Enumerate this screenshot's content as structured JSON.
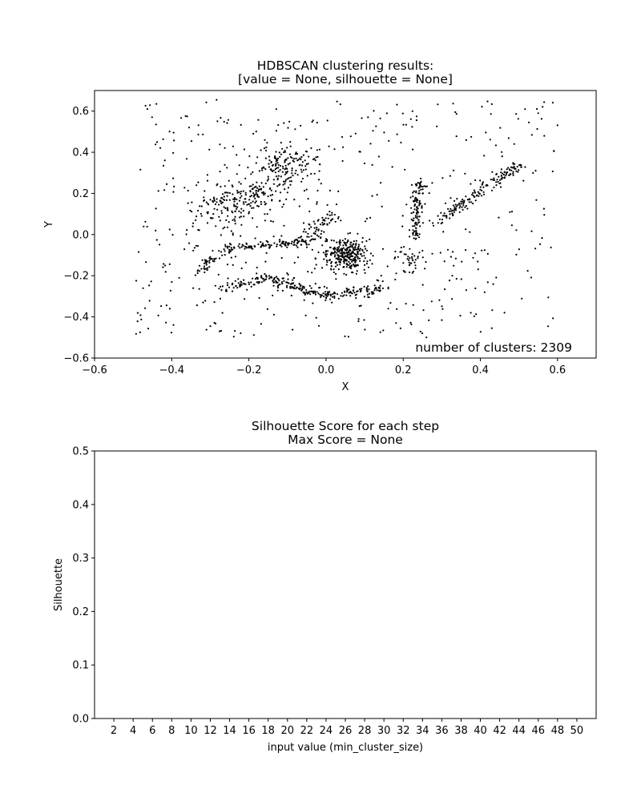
{
  "chart_data": [
    {
      "type": "scatter",
      "title_line1": "HDBSCAN clustering results:",
      "title_line2": "[value = None, silhouette = None]",
      "xlabel": "X",
      "ylabel": "Y",
      "xlim": [
        -0.6,
        0.7
      ],
      "ylim": [
        -0.6,
        0.7
      ],
      "x_ticks": [
        -0.6,
        -0.4,
        -0.2,
        0.0,
        0.2,
        0.4,
        0.6
      ],
      "x_tick_labels": [
        "−0.6",
        "−0.4",
        "−0.2",
        "0.0",
        "0.2",
        "0.4",
        "0.6"
      ],
      "y_ticks": [
        -0.6,
        -0.4,
        -0.2,
        0.0,
        0.2,
        0.4,
        0.6
      ],
      "y_tick_labels": [
        "−0.6",
        "−0.4",
        "−0.2",
        "0.0",
        "0.2",
        "0.4",
        "0.6"
      ],
      "annotation": "number of clusters: 2309",
      "grid": false,
      "point_color": "#000000",
      "structures": [
        {
          "kind": "segment",
          "from": [
            -0.34,
            -0.2
          ],
          "to": [
            -0.26,
            -0.06
          ],
          "count": 45,
          "spread": 0.012
        },
        {
          "kind": "segment",
          "from": [
            -0.26,
            -0.06
          ],
          "to": [
            -0.05,
            -0.04
          ],
          "count": 110,
          "spread": 0.01
        },
        {
          "kind": "segment",
          "from": [
            -0.05,
            -0.04
          ],
          "to": [
            0.02,
            0.1
          ],
          "count": 60,
          "spread": 0.012
        },
        {
          "kind": "segment",
          "from": [
            -0.27,
            -0.26
          ],
          "to": [
            -0.15,
            -0.21
          ],
          "count": 60,
          "spread": 0.01
        },
        {
          "kind": "segment",
          "from": [
            -0.15,
            -0.21
          ],
          "to": [
            0.0,
            -0.3
          ],
          "count": 110,
          "spread": 0.012
        },
        {
          "kind": "segment",
          "from": [
            0.0,
            -0.3
          ],
          "to": [
            0.14,
            -0.26
          ],
          "count": 80,
          "spread": 0.012
        },
        {
          "kind": "segment",
          "from": [
            0.23,
            -0.02
          ],
          "to": [
            0.24,
            0.26
          ],
          "count": 110,
          "spread": 0.008
        },
        {
          "kind": "segment",
          "from": [
            0.28,
            0.05
          ],
          "to": [
            0.5,
            0.34
          ],
          "count": 150,
          "spread": 0.01
        },
        {
          "kind": "blob",
          "center": [
            0.05,
            -0.1
          ],
          "rx": 0.05,
          "ry": 0.07,
          "count": 280
        },
        {
          "kind": "blob",
          "center": [
            -0.25,
            0.15
          ],
          "rx": 0.07,
          "ry": 0.09,
          "count": 130
        },
        {
          "kind": "blob",
          "center": [
            -0.1,
            0.33
          ],
          "rx": 0.07,
          "ry": 0.08,
          "count": 140
        },
        {
          "kind": "blob",
          "center": [
            -0.18,
            0.2
          ],
          "rx": 0.06,
          "ry": 0.05,
          "count": 70
        },
        {
          "kind": "blob",
          "center": [
            0.22,
            -0.12
          ],
          "rx": 0.04,
          "ry": 0.05,
          "count": 40
        },
        {
          "kind": "uniform",
          "xrange": [
            -0.5,
            0.6
          ],
          "yrange": [
            -0.5,
            0.66
          ],
          "count": 520
        }
      ]
    },
    {
      "type": "line",
      "title_line1": "Silhouette Score for each step",
      "title_line2": "Max Score = None",
      "xlabel": "input value (min_cluster_size)",
      "ylabel": "Silhouette",
      "xlim": [
        0,
        52
      ],
      "ylim": [
        0.0,
        0.5
      ],
      "x_ticks": [
        2,
        4,
        6,
        8,
        10,
        12,
        14,
        16,
        18,
        20,
        22,
        24,
        26,
        28,
        30,
        32,
        34,
        36,
        38,
        40,
        42,
        44,
        46,
        48,
        50
      ],
      "x_tick_labels": [
        "2",
        "4",
        "6",
        "8",
        "10",
        "12",
        "14",
        "16",
        "18",
        "20",
        "22",
        "24",
        "26",
        "28",
        "30",
        "32",
        "34",
        "36",
        "38",
        "40",
        "42",
        "44",
        "46",
        "48",
        "50"
      ],
      "y_ticks": [
        0.0,
        0.1,
        0.2,
        0.3,
        0.4,
        0.5
      ],
      "y_tick_labels": [
        "0.0",
        "0.1",
        "0.2",
        "0.3",
        "0.4",
        "0.5"
      ],
      "series": [],
      "grid": false
    }
  ]
}
